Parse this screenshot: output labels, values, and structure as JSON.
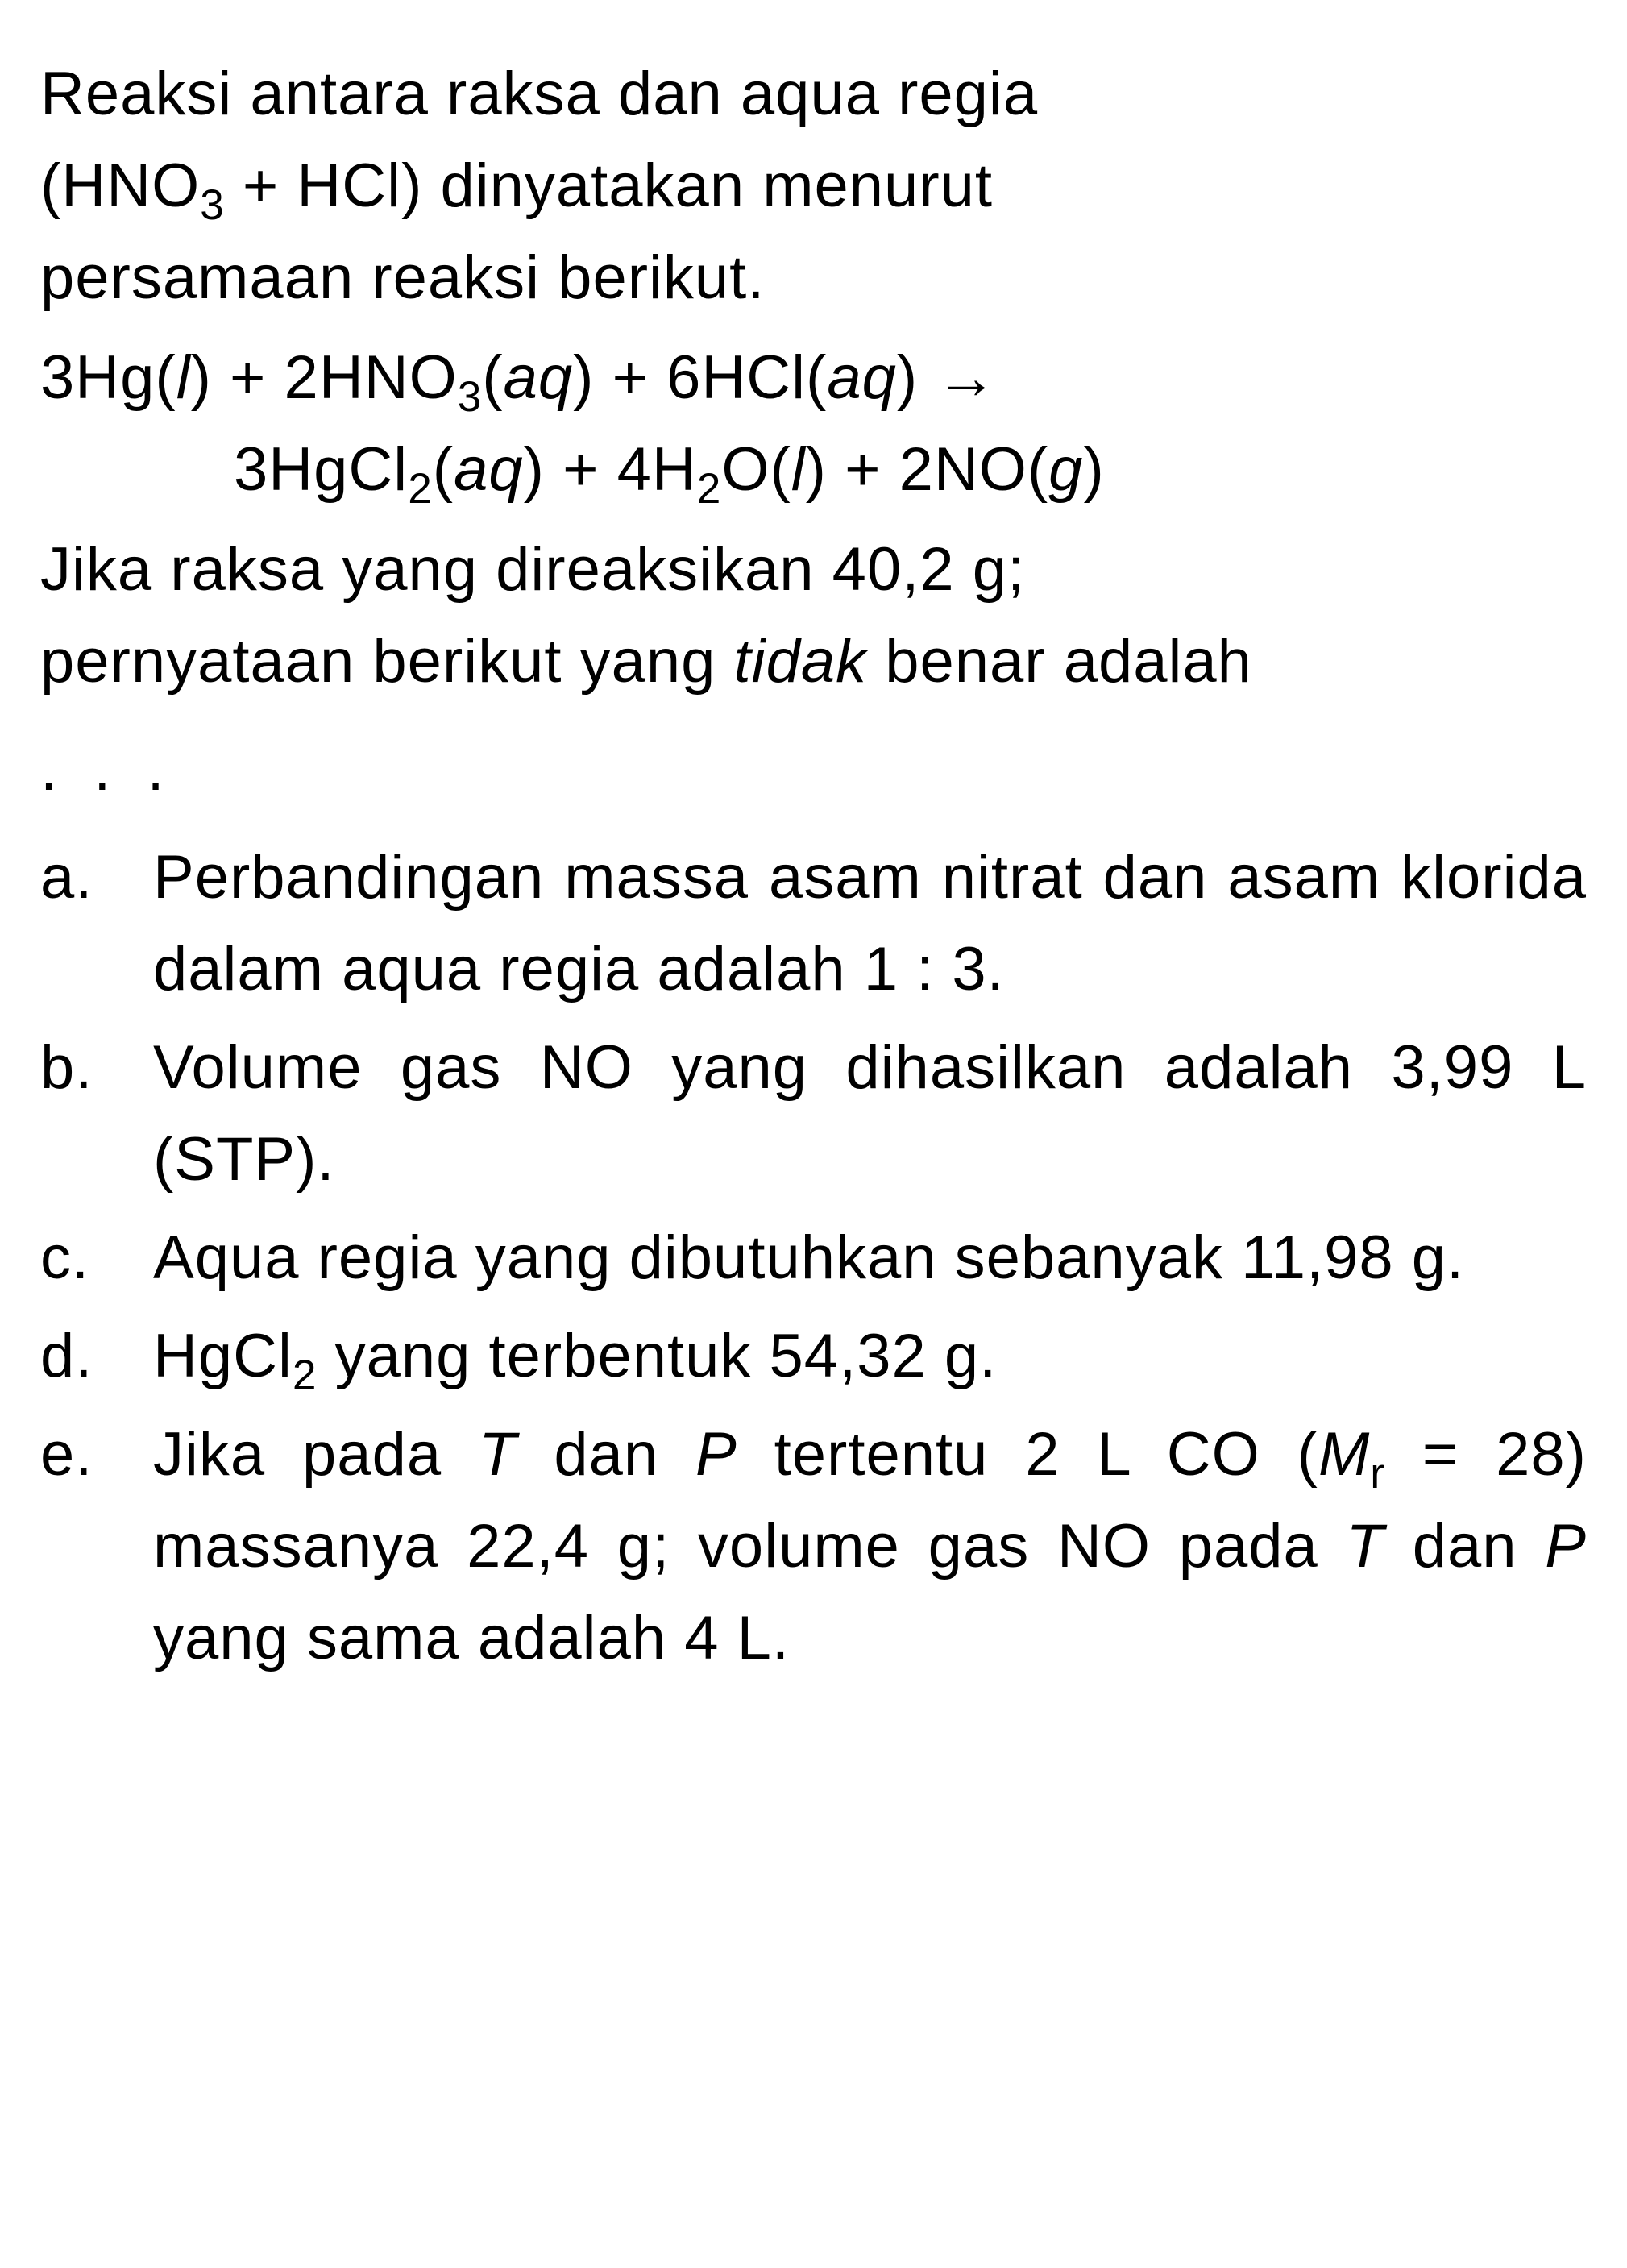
{
  "intro": {
    "line1": "Reaksi antara raksa dan aqua regia",
    "line2_part1": "(HNO",
    "line2_sub1": "3",
    "line2_part2": " + HCl) dinyatakan menurut",
    "line3": "persamaan reaksi berikut."
  },
  "equation": {
    "line1_p1": "3Hg(",
    "line1_i1": "l",
    "line1_p2": ") + 2HNO",
    "line1_s1": "3",
    "line1_p3": "(",
    "line1_i2": "aq",
    "line1_p4": ") + 6HCl(",
    "line1_i3": "aq",
    "line1_p5": ") →",
    "line2_p1": "3HgCl",
    "line2_s1": "2",
    "line2_p2": "(",
    "line2_i1": "aq",
    "line2_p3": ") + 4H",
    "line2_s2": "2",
    "line2_p4": "O(",
    "line2_i2": "l",
    "line2_p5": ") + 2NO(",
    "line2_i3": "g",
    "line2_p6": ")"
  },
  "question": {
    "line1": "Jika raksa yang direaksikan 40,2 g;",
    "line2_p1": "pernyataan berikut yang ",
    "line2_italic": "tidak",
    "line2_p2": " benar adalah"
  },
  "dots": ". . .",
  "options": {
    "a": {
      "letter": "a.",
      "text": "Perbandingan massa asam nitrat dan asam klorida dalam aqua regia adalah 1 : 3."
    },
    "b": {
      "letter": "b.",
      "text": "Volume gas NO yang dihasilkan adalah 3,99 L (STP)."
    },
    "c": {
      "letter": "c.",
      "text": "Aqua regia yang dibutuhkan sebanyak 11,98 g."
    },
    "d": {
      "letter": "d.",
      "text_p1": "HgCl",
      "text_sub": "2",
      "text_p2": " yang terbentuk 54,32 g."
    },
    "e": {
      "letter": "e.",
      "text_p1": "Jika pada ",
      "text_i1": "T",
      "text_p2": " dan ",
      "text_i2": "P",
      "text_p3": " tertentu 2 L CO (",
      "text_i3": "M",
      "text_sub1": "r",
      "text_p4": " = 28) massanya 22,4 g; volume gas NO pada ",
      "text_i4": "T",
      "text_p5": " dan ",
      "text_i5": "P",
      "text_p6": " yang sama adalah 4 L."
    }
  },
  "styling": {
    "background_color": "#ffffff",
    "text_color": "#000000",
    "font_size": 76,
    "font_family": "Arial, Helvetica, sans-serif",
    "line_height": 1.5,
    "body_width": 2019,
    "body_height": 2814
  }
}
